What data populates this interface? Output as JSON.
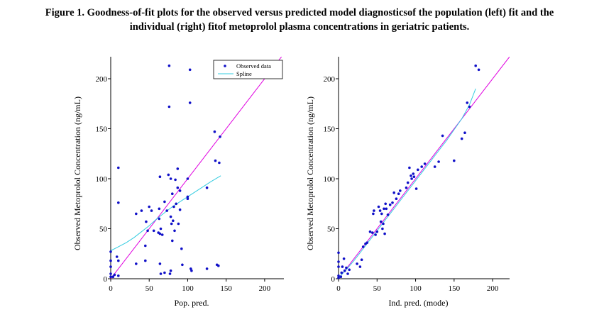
{
  "caption": {
    "line1": "Figure 1. Goodness-of-fit plots for the observed versus predicted model diagnosticsof the population (left) fit and the",
    "line2": "individual (right) fitof metoprolol plasma concentrations in geriatric patients."
  },
  "colors": {
    "points": "#1010c8",
    "identity_line": "#e000e0",
    "spline": "#33cce0",
    "axis": "#000000"
  },
  "chart_data": [
    {
      "type": "scatter",
      "title": "",
      "xlabel": "Pop. pred.",
      "ylabel": "Observed Metoprolol Concentration (ng/mL)",
      "xlim": [
        0,
        225
      ],
      "ylim": [
        0,
        222
      ],
      "xticks": [
        0,
        50,
        100,
        150,
        200
      ],
      "yticks": [
        0,
        50,
        100,
        150,
        200
      ],
      "legend": {
        "position": "top-right",
        "entries": [
          {
            "label": "Observed data",
            "kind": "point"
          },
          {
            "label": "Spline",
            "kind": "line"
          }
        ]
      },
      "series": [
        {
          "name": "Observed data",
          "kind": "points",
          "points": [
            [
              0,
              2
            ],
            [
              0,
              5
            ],
            [
              0,
              12
            ],
            [
              0,
              18
            ],
            [
              0,
              27
            ],
            [
              3,
              2
            ],
            [
              5,
              4
            ],
            [
              8,
              22
            ],
            [
              10,
              3
            ],
            [
              10,
              111
            ],
            [
              10,
              76
            ],
            [
              10,
              18
            ],
            [
              33,
              15
            ],
            [
              33,
              65
            ],
            [
              40,
              68
            ],
            [
              45,
              33
            ],
            [
              45,
              18
            ],
            [
              46,
              57
            ],
            [
              48,
              48
            ],
            [
              50,
              72
            ],
            [
              53,
              68
            ],
            [
              56,
              48
            ],
            [
              62,
              46
            ],
            [
              63,
              60
            ],
            [
              63,
              70
            ],
            [
              64,
              45
            ],
            [
              64,
              102
            ],
            [
              64,
              15
            ],
            [
              65,
              5
            ],
            [
              65,
              50
            ],
            [
              67,
              44
            ],
            [
              70,
              77
            ],
            [
              70,
              6
            ],
            [
              73,
              68
            ],
            [
              75,
              104
            ],
            [
              76,
              213
            ],
            [
              76,
              172
            ],
            [
              77,
              5
            ],
            [
              78,
              8
            ],
            [
              78,
              62
            ],
            [
              78,
              100
            ],
            [
              79,
              55
            ],
            [
              80,
              38
            ],
            [
              80,
              85
            ],
            [
              81,
              58
            ],
            [
              82,
              72
            ],
            [
              83,
              48
            ],
            [
              84,
              99
            ],
            [
              85,
              75
            ],
            [
              87,
              110
            ],
            [
              87,
              91
            ],
            [
              88,
              55
            ],
            [
              90,
              69
            ],
            [
              90,
              88
            ],
            [
              92,
              30
            ],
            [
              93,
              14
            ],
            [
              100,
              100
            ],
            [
              100,
              82
            ],
            [
              100,
              80
            ],
            [
              103,
              209
            ],
            [
              103,
              176
            ],
            [
              104,
              10
            ],
            [
              105,
              8
            ],
            [
              125,
              91
            ],
            [
              125,
              10
            ],
            [
              135,
              147
            ],
            [
              136,
              118
            ],
            [
              138,
              14
            ],
            [
              140,
              13
            ],
            [
              141,
              116
            ],
            [
              142,
              142
            ]
          ]
        },
        {
          "name": "Identity",
          "kind": "line",
          "points": [
            [
              0,
              0
            ],
            [
              222,
              222
            ]
          ]
        },
        {
          "name": "Spline",
          "kind": "line",
          "points": [
            [
              0,
              28
            ],
            [
              10,
              32
            ],
            [
              20,
              36
            ],
            [
              30,
              41
            ],
            [
              40,
              47
            ],
            [
              50,
              53
            ],
            [
              60,
              60
            ],
            [
              70,
              66
            ],
            [
              80,
              72
            ],
            [
              90,
              77
            ],
            [
              100,
              82
            ],
            [
              110,
              87
            ],
            [
              120,
              92
            ],
            [
              130,
              97
            ],
            [
              143,
              103
            ]
          ]
        }
      ]
    },
    {
      "type": "scatter",
      "title": "",
      "xlabel": "Ind. pred. (mode)",
      "ylabel": "Observed Metoprolol Concentration (ng/mL)",
      "xlim": [
        0,
        222
      ],
      "ylim": [
        0,
        222
      ],
      "xticks": [
        0,
        50,
        100,
        150,
        200
      ],
      "yticks": [
        0,
        50,
        100,
        150,
        200
      ],
      "series": [
        {
          "name": "Observed data",
          "kind": "points",
          "points": [
            [
              0,
              1
            ],
            [
              0,
              3
            ],
            [
              0,
              12
            ],
            [
              0,
              17
            ],
            [
              0,
              26
            ],
            [
              3,
              2
            ],
            [
              4,
              6
            ],
            [
              5,
              12
            ],
            [
              7,
              20
            ],
            [
              8,
              8
            ],
            [
              10,
              11
            ],
            [
              12,
              5
            ],
            [
              14,
              9
            ],
            [
              24,
              15
            ],
            [
              28,
              12
            ],
            [
              30,
              19
            ],
            [
              32,
              32
            ],
            [
              35,
              35
            ],
            [
              37,
              36
            ],
            [
              41,
              47
            ],
            [
              44,
              46
            ],
            [
              45,
              65
            ],
            [
              46,
              68
            ],
            [
              48,
              44
            ],
            [
              50,
              47
            ],
            [
              52,
              72
            ],
            [
              54,
              68
            ],
            [
              55,
              57
            ],
            [
              56,
              65
            ],
            [
              57,
              50
            ],
            [
              58,
              55
            ],
            [
              59,
              70
            ],
            [
              60,
              45
            ],
            [
              61,
              75
            ],
            [
              62,
              70
            ],
            [
              64,
              64
            ],
            [
              67,
              74
            ],
            [
              70,
              76
            ],
            [
              72,
              86
            ],
            [
              75,
              80
            ],
            [
              78,
              85
            ],
            [
              80,
              88
            ],
            [
              88,
              91
            ],
            [
              90,
              96
            ],
            [
              92,
              111
            ],
            [
              94,
              103
            ],
            [
              95,
              100
            ],
            [
              97,
              105
            ],
            [
              98,
              102
            ],
            [
              101,
              90
            ],
            [
              103,
              109
            ],
            [
              108,
              112
            ],
            [
              112,
              115
            ],
            [
              125,
              112
            ],
            [
              130,
              117
            ],
            [
              135,
              143
            ],
            [
              150,
              118
            ],
            [
              160,
              140
            ],
            [
              164,
              146
            ],
            [
              167,
              176
            ],
            [
              170,
              172
            ],
            [
              178,
              213
            ],
            [
              182,
              209
            ]
          ]
        },
        {
          "name": "Identity",
          "kind": "line",
          "points": [
            [
              0,
              0
            ],
            [
              222,
              222
            ]
          ]
        },
        {
          "name": "Spline",
          "kind": "line",
          "points": [
            [
              0,
              1
            ],
            [
              10,
              9
            ],
            [
              20,
              18
            ],
            [
              30,
              28
            ],
            [
              40,
              38
            ],
            [
              50,
              48
            ],
            [
              60,
              58
            ],
            [
              70,
              68
            ],
            [
              80,
              78
            ],
            [
              90,
              88
            ],
            [
              100,
              98
            ],
            [
              110,
              108
            ],
            [
              120,
              118
            ],
            [
              130,
              128
            ],
            [
              140,
              138
            ],
            [
              150,
              149
            ],
            [
              160,
              160
            ],
            [
              170,
              174
            ],
            [
              178,
              190
            ]
          ]
        }
      ]
    }
  ]
}
